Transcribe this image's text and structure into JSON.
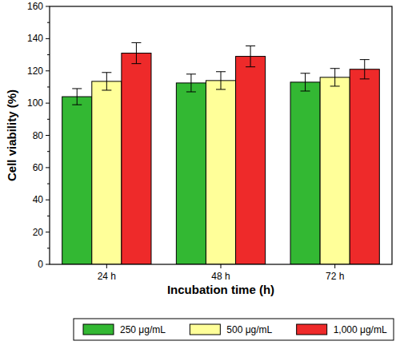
{
  "chart_data": {
    "type": "bar",
    "x_label": "Incubation time (h)",
    "y_label": "Cell viability (%)",
    "categories": [
      "24 h",
      "48 h",
      "72 h"
    ],
    "series": [
      {
        "name": "250 μg/mL",
        "color": "#33b833",
        "values": [
          104,
          112.5,
          113
        ],
        "errors": [
          5,
          5.5,
          5.5
        ]
      },
      {
        "name": "500 μg/mL",
        "color": "#ffff99",
        "values": [
          113.5,
          114,
          116
        ],
        "errors": [
          5.5,
          5.5,
          5.5
        ]
      },
      {
        "name": "1,000 μg/mL",
        "color": "#ee2a2a",
        "values": [
          131,
          129,
          121
        ],
        "errors": [
          6.5,
          6.5,
          6
        ]
      }
    ],
    "ylim": [
      0,
      160
    ],
    "yticks": [
      0,
      20,
      40,
      60,
      80,
      100,
      120,
      140,
      160
    ],
    "legend": "bottom",
    "grid": false
  }
}
